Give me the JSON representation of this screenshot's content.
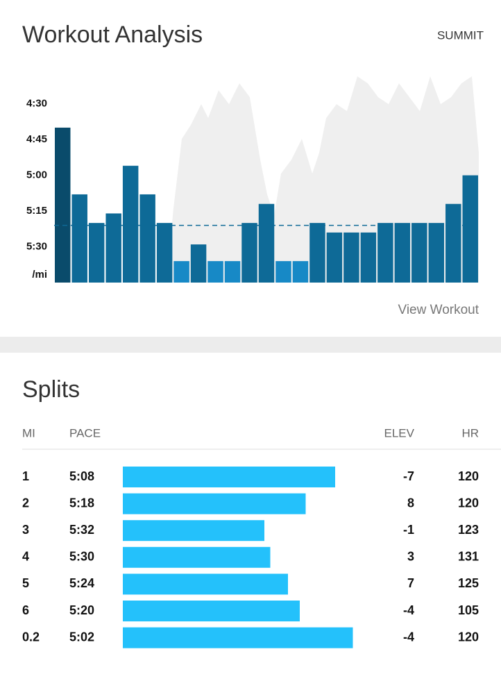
{
  "header": {
    "title": "Workout Analysis",
    "action": "SUMMIT"
  },
  "chart_data": {
    "type": "bar",
    "y_unit": "/mi",
    "ylim": [
      345,
      255
    ],
    "yticks": [
      {
        "value": 270,
        "label": "4:30"
      },
      {
        "value": 285,
        "label": "4:45"
      },
      {
        "value": 300,
        "label": "5:00"
      },
      {
        "value": 315,
        "label": "5:15"
      },
      {
        "value": 330,
        "label": "5:30"
      }
    ],
    "values": [
      280,
      308,
      320,
      316,
      296,
      308,
      320,
      336,
      329,
      336,
      336,
      320,
      312,
      336,
      336,
      320,
      324,
      324,
      324,
      320,
      320,
      320,
      320,
      312,
      300
    ],
    "colors": [
      "#0a4b6b",
      "#0e6a97",
      "#0e6a97",
      "#0e6a97",
      "#0e6a97",
      "#0e6a97",
      "#0e6a97",
      "#1789c6",
      "#0e6a97",
      "#1789c6",
      "#1789c6",
      "#0e6a97",
      "#0e6a97",
      "#1789c6",
      "#1789c6",
      "#0e6a97",
      "#0e6a97",
      "#0e6a97",
      "#0e6a97",
      "#0e6a97",
      "#0e6a97",
      "#0e6a97",
      "#0e6a97",
      "#0e6a97",
      "#0e6a97"
    ],
    "average": 321,
    "average_color": "#0e6a97",
    "link": "View Workout"
  },
  "splits": {
    "title": "Splits",
    "columns": [
      "MI",
      "PACE",
      "ELEV",
      "HR"
    ],
    "bar_xlim": [
      380,
      300
    ],
    "bar_color": "#24c1fb",
    "rows": [
      {
        "mi": 1,
        "pace": {
          "value": 308,
          "label": "5:08"
        },
        "elev": -7,
        "hr": 120
      },
      {
        "mi": 2,
        "pace": {
          "value": 318,
          "label": "5:18"
        },
        "elev": 8,
        "hr": 120
      },
      {
        "mi": 3,
        "pace": {
          "value": 332,
          "label": "5:32"
        },
        "elev": -1,
        "hr": 123
      },
      {
        "mi": 4,
        "pace": {
          "value": 330,
          "label": "5:30"
        },
        "elev": 3,
        "hr": 131
      },
      {
        "mi": 5,
        "pace": {
          "value": 324,
          "label": "5:24"
        },
        "elev": 7,
        "hr": 125
      },
      {
        "mi": 6,
        "pace": {
          "value": 320,
          "label": "5:20"
        },
        "elev": -4,
        "hr": 105
      },
      {
        "mi": 0.2,
        "pace": {
          "value": 302,
          "label": "5:02"
        },
        "elev": -4,
        "hr": 120
      }
    ]
  }
}
